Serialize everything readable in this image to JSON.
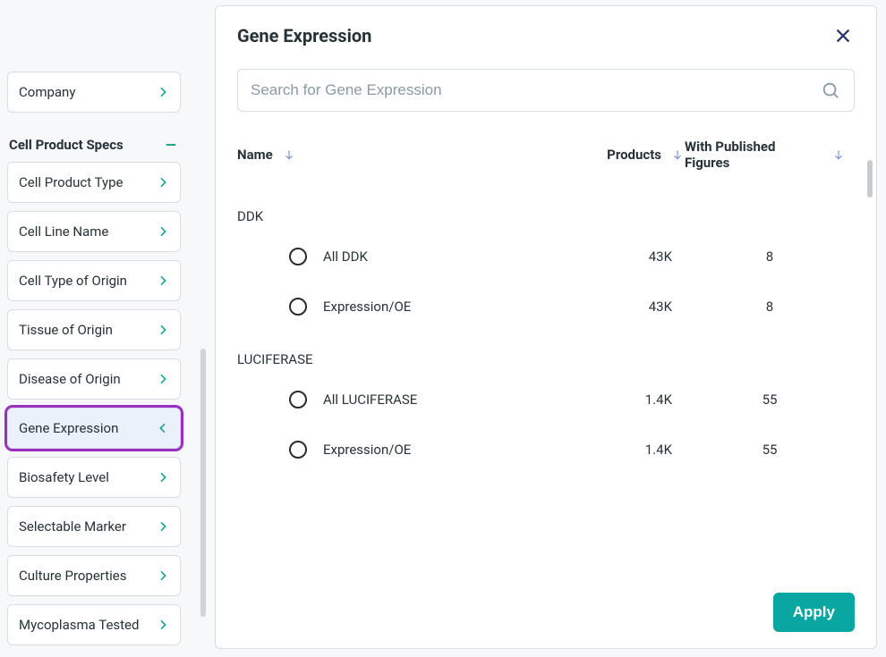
{
  "sidebar": {
    "top_filter": {
      "label": "Company"
    },
    "section_title": "Cell Product Specs",
    "filters": [
      {
        "label": "Cell Product Type",
        "active": false
      },
      {
        "label": "Cell Line Name",
        "active": false
      },
      {
        "label": "Cell Type of Origin",
        "active": false
      },
      {
        "label": "Tissue of Origin",
        "active": false
      },
      {
        "label": "Disease of Origin",
        "active": false
      },
      {
        "label": "Gene Expression",
        "active": true
      },
      {
        "label": "Biosafety Level",
        "active": false
      },
      {
        "label": "Selectable Marker",
        "active": false
      },
      {
        "label": "Culture Properties",
        "active": false
      },
      {
        "label": "Mycoplasma Tested",
        "active": false
      }
    ]
  },
  "panel": {
    "title": "Gene Expression",
    "search_placeholder": "Search for Gene Expression",
    "columns": {
      "name": "Name",
      "products": "Products",
      "figures": "With Published Figures"
    },
    "groups": [
      {
        "label": "DDK",
        "options": [
          {
            "name": "All DDK",
            "products": "43K",
            "figures": "8"
          },
          {
            "name": "Expression/OE",
            "products": "43K",
            "figures": "8"
          }
        ]
      },
      {
        "label": "LUCIFERASE",
        "options": [
          {
            "name": "All LUCIFERASE",
            "products": "1.4K",
            "figures": "55"
          },
          {
            "name": "Expression/OE",
            "products": "1.4K",
            "figures": "55"
          }
        ]
      }
    ],
    "apply_label": "Apply"
  },
  "colors": {
    "accent": "#0aa7a2",
    "chevron": "#17a398",
    "close_x": "#27346b",
    "sort_arrow": "#7d8fd0",
    "highlight_ring": "#9b2fc1",
    "border": "#d7dee3",
    "text": "#263238",
    "placeholder": "#8a9aa6",
    "panel_bg": "#ffffff",
    "page_bg": "#f6f8f9",
    "active_pill_bg": "#eaf1fb"
  }
}
